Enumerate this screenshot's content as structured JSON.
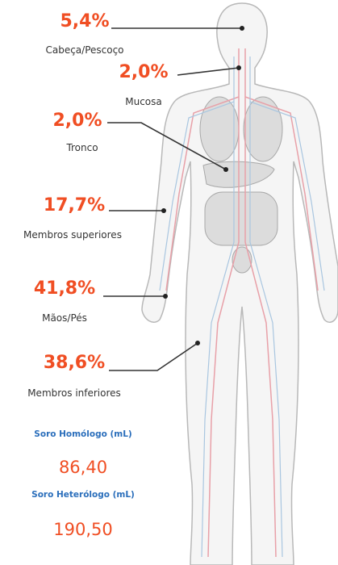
{
  "callouts": [
    {
      "value": "5,4%",
      "label": "Cabeça/Pescoço"
    },
    {
      "value": "2,0%",
      "label": "Mucosa"
    },
    {
      "value": "2,0%",
      "label": "Tronco"
    },
    {
      "value": "17,7%",
      "label": "Membros superiores"
    },
    {
      "value": "41,8%",
      "label": "Mãos/Pés"
    },
    {
      "value": "38,6%",
      "label": "Membros inferiores"
    }
  ],
  "serum": [
    {
      "label": "Soro Homólogo (mL)",
      "value": "86,40"
    },
    {
      "label": "Soro Heterólogo (mL)",
      "value": "190,50"
    }
  ]
}
